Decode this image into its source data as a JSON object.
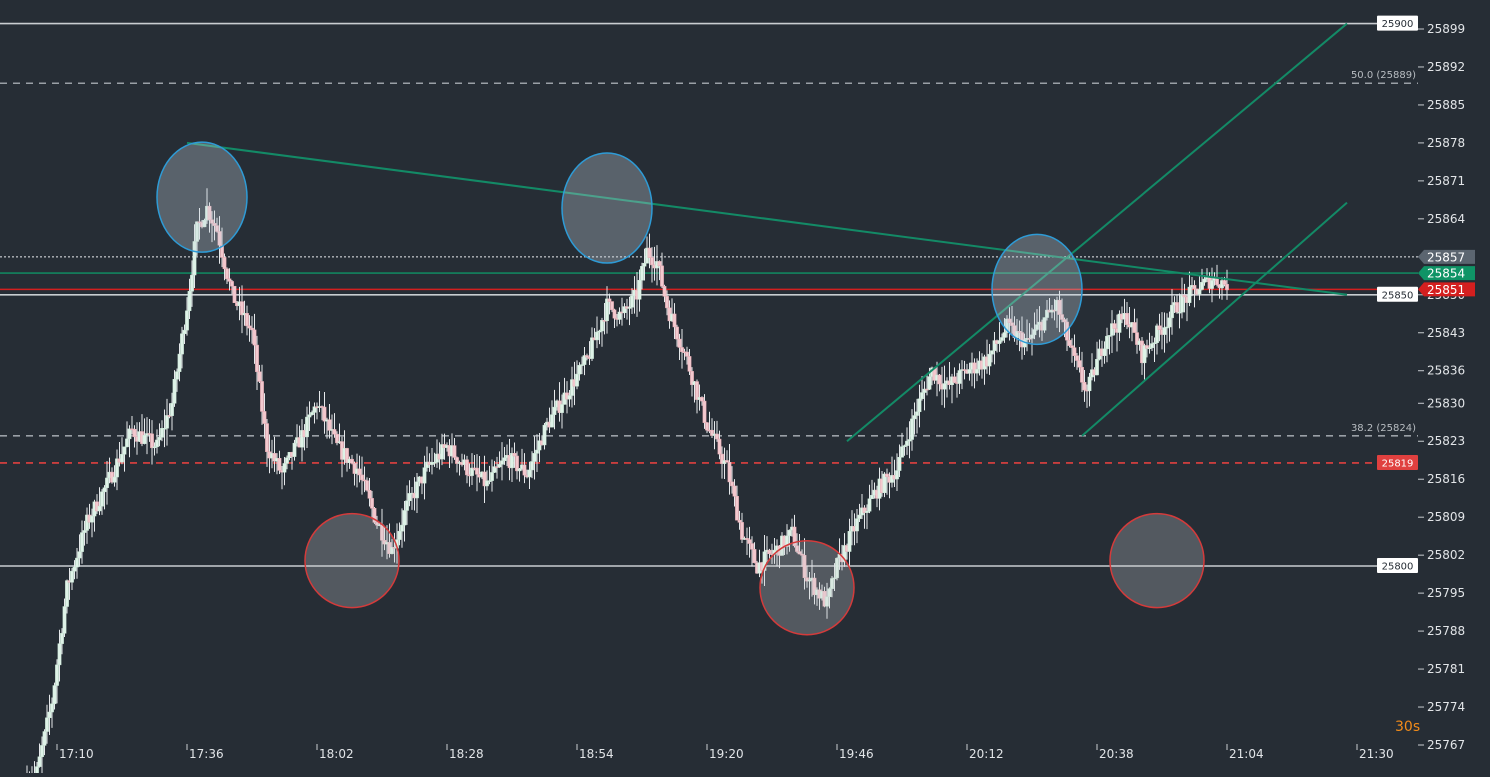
{
  "chart_data": {
    "type": "candlestick",
    "title": "",
    "xlabel": "",
    "ylabel": "",
    "interval_label": "30s",
    "x_ticks": [
      "17:10",
      "17:36",
      "18:02",
      "18:28",
      "18:54",
      "19:20",
      "19:46",
      "20:12",
      "20:38",
      "21:04",
      "21:30"
    ],
    "x_range": [
      "17:04",
      "21:39"
    ],
    "y_ticks": [
      25899,
      25892,
      25885,
      25878,
      25871,
      25864,
      25857,
      25850,
      25843,
      25836,
      25830,
      25823,
      25816,
      25809,
      25802,
      25795,
      25788,
      25781,
      25774,
      25767
    ],
    "ylim": [
      25766,
      25901
    ],
    "grid": false,
    "price_levels": [
      {
        "value": 25900,
        "label": "25900",
        "color": "#c9cdd1",
        "style": "solid",
        "tag_bg": "#ffffff",
        "tag_text": "#262d35"
      },
      {
        "value": 25850,
        "label": "25850",
        "color": "#c9cdd1",
        "style": "solid",
        "tag_bg": "#ffffff",
        "tag_text": "#262d35"
      },
      {
        "value": 25800,
        "label": "25800",
        "color": "#c9cdd1",
        "style": "solid",
        "tag_bg": "#ffffff",
        "tag_text": "#262d35"
      },
      {
        "value": 25819,
        "label": "25819",
        "color": "#e0403f",
        "style": "dashed",
        "tag_bg": "#e0403f",
        "tag_text": "#ffffff"
      }
    ],
    "fib_levels": [
      {
        "value": 25889,
        "label": "50.0 (25889)",
        "color": "#9aa0a6"
      },
      {
        "value": 25824,
        "label": "38.2 (25824)",
        "color": "#9aa0a6"
      }
    ],
    "markers": [
      {
        "value": 25857,
        "label": "25857",
        "color": "#e9ecef",
        "bg": "#5b6570",
        "style": "dotted"
      },
      {
        "value": 25854,
        "label": "25854",
        "color": "#0f9466",
        "bg": "#0f9466",
        "style": "solid"
      },
      {
        "value": 25851,
        "label": "25851",
        "color": "#d41f1f",
        "bg": "#d41f1f",
        "style": "solid"
      }
    ],
    "trendlines": [
      {
        "from": [
          "17:36",
          25878
        ],
        "to": [
          "21:28",
          25850
        ],
        "color": "#138a66"
      },
      {
        "from": [
          "19:48",
          25823
        ],
        "to": [
          "21:28",
          25900
        ],
        "color": "#138a66"
      },
      {
        "from": [
          "20:35",
          25824
        ],
        "to": [
          "21:28",
          25867
        ],
        "color": "#138a66"
      }
    ],
    "highlights": [
      {
        "time": "17:39",
        "price": 25868,
        "color": "blue"
      },
      {
        "time": "18:09",
        "price": 25801,
        "color": "red"
      },
      {
        "time": "19:00",
        "price": 25866,
        "color": "blue"
      },
      {
        "time": "19:40",
        "price": 25796,
        "color": "red"
      },
      {
        "time": "20:26",
        "price": 25851,
        "color": "blue"
      },
      {
        "time": "20:50",
        "price": 25801,
        "color": "red"
      }
    ],
    "anchors": [
      [
        "17:04",
        25760
      ],
      [
        "17:06",
        25762
      ],
      [
        "17:09",
        25775
      ],
      [
        "17:12",
        25796
      ],
      [
        "17:16",
        25808
      ],
      [
        "17:20",
        25815
      ],
      [
        "17:25",
        25825
      ],
      [
        "17:30",
        25822
      ],
      [
        "17:33",
        25830
      ],
      [
        "17:36",
        25848
      ],
      [
        "17:38",
        25862
      ],
      [
        "17:40",
        25866
      ],
      [
        "17:42",
        25862
      ],
      [
        "17:45",
        25850
      ],
      [
        "17:49",
        25843
      ],
      [
        "17:52",
        25822
      ],
      [
        "17:55",
        25817
      ],
      [
        "17:59",
        25824
      ],
      [
        "18:02",
        25830
      ],
      [
        "18:06",
        25822
      ],
      [
        "18:10",
        25818
      ],
      [
        "18:14",
        25808
      ],
      [
        "18:17",
        25803
      ],
      [
        "18:20",
        25811
      ],
      [
        "18:24",
        25818
      ],
      [
        "18:28",
        25822
      ],
      [
        "18:32",
        25818
      ],
      [
        "18:36",
        25815
      ],
      [
        "18:40",
        25820
      ],
      [
        "18:44",
        25817
      ],
      [
        "18:48",
        25826
      ],
      [
        "18:52",
        25832
      ],
      [
        "18:56",
        25838
      ],
      [
        "19:00",
        25848
      ],
      [
        "19:03",
        25846
      ],
      [
        "19:06",
        25850
      ],
      [
        "19:08",
        25858
      ],
      [
        "19:10",
        25856
      ],
      [
        "19:12",
        25848
      ],
      [
        "19:16",
        25838
      ],
      [
        "19:20",
        25826
      ],
      [
        "19:24",
        25818
      ],
      [
        "19:27",
        25806
      ],
      [
        "19:30",
        25800
      ],
      [
        "19:34",
        25803
      ],
      [
        "19:37",
        25806
      ],
      [
        "19:40",
        25798
      ],
      [
        "19:44",
        25793
      ],
      [
        "19:46",
        25800
      ],
      [
        "19:50",
        25808
      ],
      [
        "19:54",
        25814
      ],
      [
        "19:58",
        25818
      ],
      [
        "20:02",
        25829
      ],
      [
        "20:05",
        25836
      ],
      [
        "20:08",
        25833
      ],
      [
        "20:12",
        25836
      ],
      [
        "20:16",
        25838
      ],
      [
        "20:20",
        25844
      ],
      [
        "20:24",
        25841
      ],
      [
        "20:27",
        25845
      ],
      [
        "20:30",
        25848
      ],
      [
        "20:33",
        25839
      ],
      [
        "20:36",
        25832
      ],
      [
        "20:40",
        25843
      ],
      [
        "20:44",
        25846
      ],
      [
        "20:47",
        25839
      ],
      [
        "20:51",
        25844
      ],
      [
        "20:54",
        25848
      ],
      [
        "20:58",
        25851
      ],
      [
        "21:01",
        25853
      ],
      [
        "21:04",
        25852
      ]
    ],
    "candle_seed": 7
  }
}
